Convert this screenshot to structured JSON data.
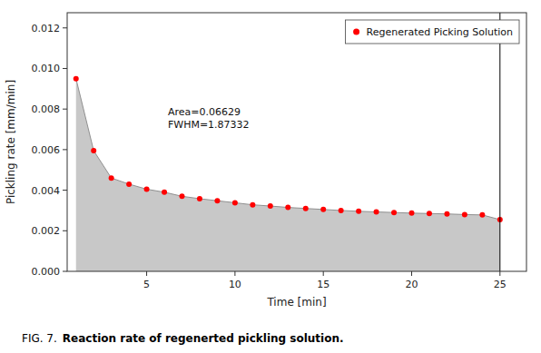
{
  "chart_data": {
    "type": "area",
    "x_label": "Time [min]",
    "y_label": "Pickling rate [mm/min]",
    "caption_label": "FIG. 7.",
    "caption": "Reaction rate of regenerted pickling solution.",
    "x": [
      1,
      2,
      3,
      4,
      5,
      6,
      7,
      8,
      9,
      10,
      11,
      12,
      13,
      14,
      15,
      16,
      17,
      18,
      19,
      20,
      21,
      22,
      23,
      24,
      25
    ],
    "series": [
      {
        "name": "Regenerated Picking Solution",
        "color": "#ff0000",
        "marker": "circle",
        "line_style": "solid",
        "values": [
          0.0095,
          0.00595,
          0.0046,
          0.0043,
          0.00405,
          0.0039,
          0.0037,
          0.00358,
          0.00348,
          0.00338,
          0.00328,
          0.00322,
          0.00315,
          0.0031,
          0.00305,
          0.003,
          0.00296,
          0.00293,
          0.0029,
          0.00287,
          0.00285,
          0.00283,
          0.0028,
          0.00278,
          0.00255
        ]
      }
    ],
    "annotations": [
      {
        "x": 6.2,
        "y": 0.0082,
        "lines": [
          "Area=0.06629",
          "FWHM=1.87332"
        ]
      }
    ],
    "vlines": [
      {
        "x": 25,
        "color": "#000000"
      }
    ],
    "xlim": [
      0.5,
      26.5
    ],
    "ylim": [
      0.0,
      0.01275
    ],
    "xticks": [
      5,
      10,
      15,
      20,
      25
    ],
    "yticks": [
      {
        "value": 0.0,
        "label": "0.000"
      },
      0.002,
      0.004,
      0.006,
      0.008,
      {
        "value": 0.01,
        "label": "0.010"
      },
      0.012
    ],
    "legend": "upper right",
    "grid": false
  }
}
